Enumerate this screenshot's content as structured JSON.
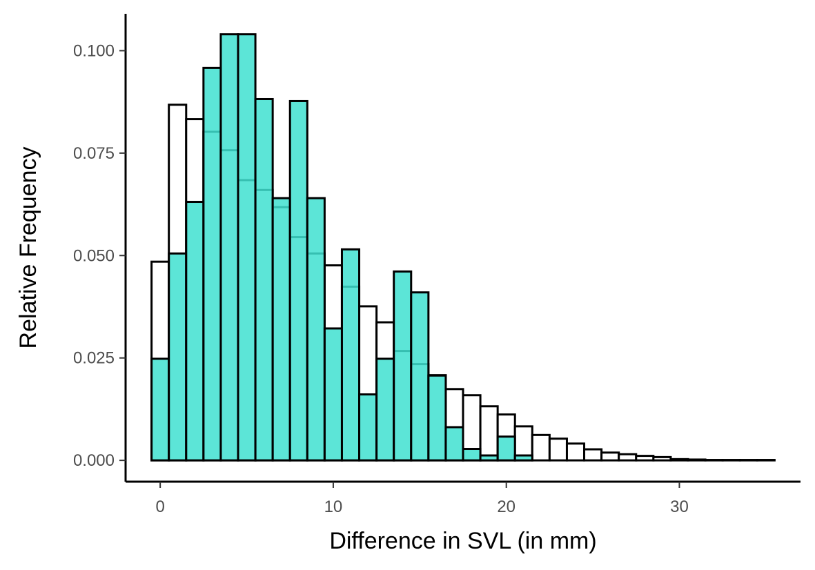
{
  "chart_data": {
    "type": "bar",
    "title": "",
    "xlabel": "Difference in SVL (in mm)",
    "ylabel": "Relative Frequency",
    "xlim": [
      -2,
      37
    ],
    "ylim": [
      -0.0052,
      0.109
    ],
    "bin_width": 1,
    "xticks": [
      0,
      10,
      20,
      30
    ],
    "xtick_labels": [
      "0",
      "10",
      "20",
      "30"
    ],
    "yticks": [
      0,
      0.025,
      0.05,
      0.075,
      0.1
    ],
    "ytick_labels": [
      "0.000",
      "0.025",
      "0.050",
      "0.075",
      "0.100"
    ],
    "grid": false,
    "legend": "none",
    "series": [
      {
        "fill": "#ffffff",
        "outline": "#000000",
        "x": [
          0,
          1,
          2,
          3,
          4,
          5,
          6,
          7,
          8,
          9,
          10,
          11,
          12,
          13,
          14,
          15,
          16,
          17,
          18,
          19,
          20,
          21,
          22,
          23,
          24,
          25,
          26,
          27,
          28,
          29,
          30,
          31,
          32,
          33,
          34,
          35
        ],
        "values": [
          0.0485,
          0.0868,
          0.0833,
          0.0802,
          0.0757,
          0.0684,
          0.066,
          0.0618,
          0.0545,
          0.0505,
          0.0476,
          0.0424,
          0.0376,
          0.0337,
          0.0267,
          0.0235,
          0.0208,
          0.0174,
          0.0159,
          0.0132,
          0.0112,
          0.0083,
          0.0062,
          0.0053,
          0.0041,
          0.0027,
          0.0019,
          0.0015,
          0.0011,
          0.0008,
          0.0003,
          0.0002,
          0.0001,
          0.0001,
          0.0001,
          0.0001
        ]
      },
      {
        "fill": "#40E0D0",
        "outline": "#000000",
        "x": [
          0,
          1,
          2,
          3,
          4,
          5,
          6,
          7,
          8,
          9,
          10,
          11,
          12,
          13,
          14,
          15,
          16,
          17,
          18,
          19,
          20,
          21
        ],
        "values": [
          0.0248,
          0.0505,
          0.0631,
          0.0958,
          0.104,
          0.104,
          0.0882,
          0.064,
          0.0877,
          0.064,
          0.0322,
          0.0515,
          0.0161,
          0.0248,
          0.0461,
          0.041,
          0.0207,
          0.0081,
          0.0028,
          0.0012,
          0.0058,
          0.0012
        ]
      }
    ]
  }
}
